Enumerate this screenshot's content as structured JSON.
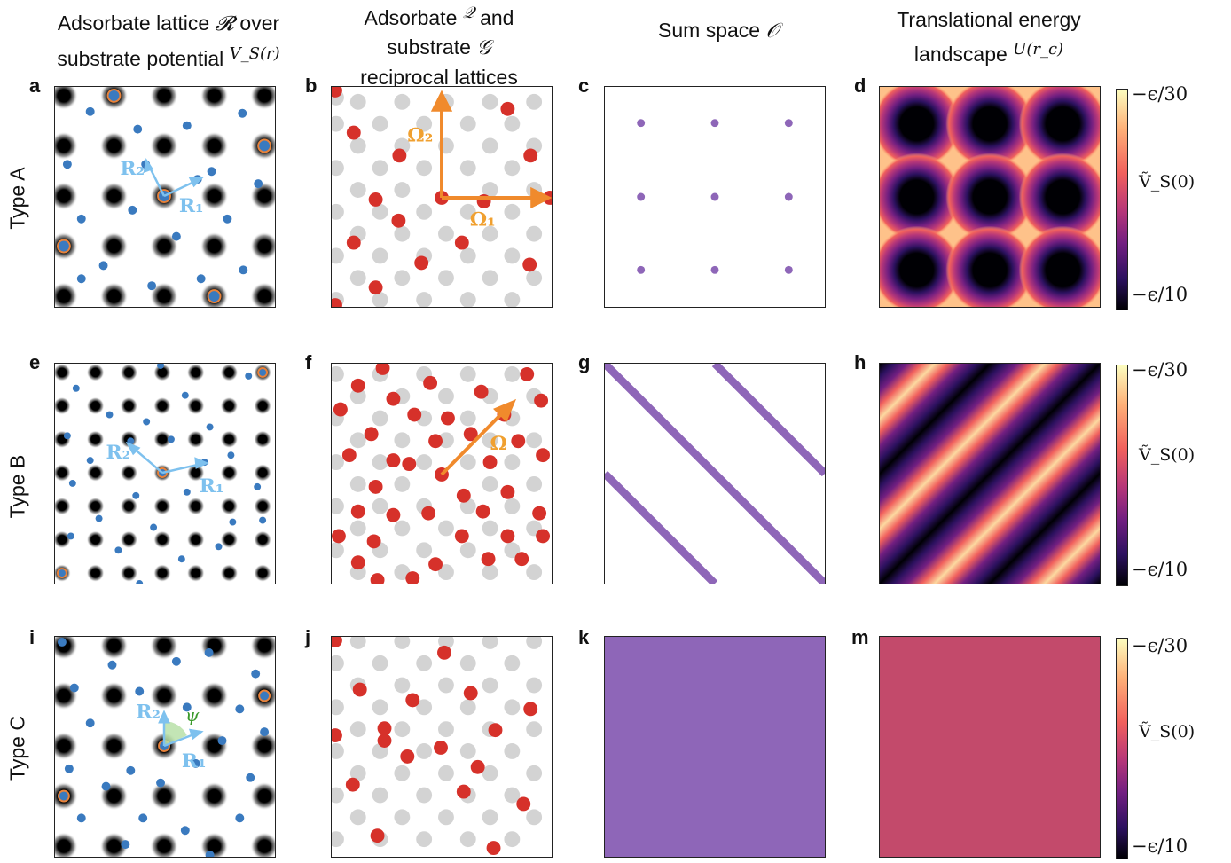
{
  "columns": {
    "col1_line1": "Adsorbate lattice ",
    "col1_line1_sym": "𝓡",
    "col1_line1_end": " over",
    "col1_line2": "substrate potential ",
    "col1_line2_sym": "V_S(r)",
    "col2_line1": "Adsorbate ",
    "col2_line1_sym": "𝒬",
    "col2_line1_end": " and",
    "col2_line2": "substrate ",
    "col2_line2_sym": "𝒢",
    "col2_line3": "reciprocal lattices",
    "col3_line1": "Sum space ",
    "col3_line1_sym": "𝒪",
    "col4_line1": "Translational energy",
    "col4_line2": "landscape ",
    "col4_line2_sym": "U(r_c)"
  },
  "rows": [
    "Type A",
    "Type B",
    "Type C"
  ],
  "panel_letters": [
    "a",
    "b",
    "c",
    "d",
    "e",
    "f",
    "g",
    "h",
    "i",
    "j",
    "k",
    "m"
  ],
  "vectors": {
    "R1": "R₁",
    "R2": "R₂",
    "Omega1": "Ω₁",
    "Omega2": "Ω₂",
    "Omega": "Ω",
    "psi": "ψ"
  },
  "colorbar": {
    "top": "−ϵ/30",
    "mid": "Ṽ_S(0)",
    "bottom": "−ϵ/10"
  },
  "colors": {
    "substrate_site": "#000000",
    "adsorbate_dot": "#3a7abf",
    "highlight_ring": "#e8823a",
    "reciprocal_adsorbate": "#d6312a",
    "reciprocal_substrate": "#d3d3d3",
    "vector_light_blue": "#7ec1ee",
    "omega_arrow": "#f08a2c",
    "omega_label": "#f0a030",
    "sum_space": "#8e66b8",
    "uniform_landscape": "#c34a6b",
    "psi": "#3a9a2a"
  }
}
